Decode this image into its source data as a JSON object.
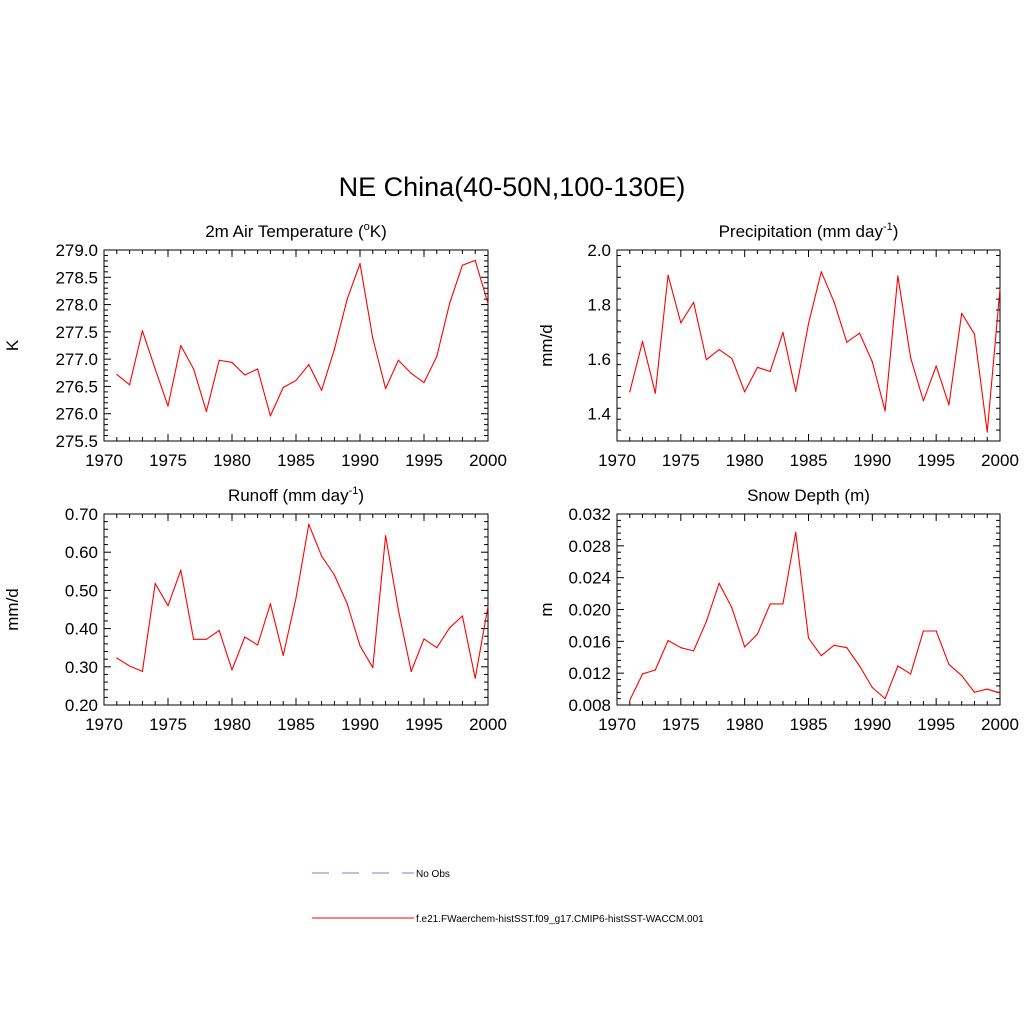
{
  "figure": {
    "title": "NE China(40-50N,100-130E)"
  },
  "legend": {
    "entries": [
      {
        "label": "No Obs",
        "color": "#9999dd",
        "style": "dashed"
      },
      {
        "label": "f.e21.FWaerchem-histSST.f09_g17.CMIP6-histSST-WACCM.001",
        "color": "#ff0000",
        "style": "solid"
      }
    ]
  },
  "chart_data": [
    {
      "type": "line",
      "title": "2m Air Temperature (°K)",
      "title_main": "2m Air Temperature (",
      "title_sup": "o",
      "title_after": "K)",
      "ylabel": "K",
      "xlim": [
        1970,
        2000
      ],
      "ylim": [
        275.5,
        279.0
      ],
      "x_ticks": [
        1970,
        1975,
        1980,
        1985,
        1990,
        1995,
        2000
      ],
      "y_ticks": [
        275.5,
        276.0,
        276.5,
        277.0,
        277.5,
        278.0,
        278.5,
        279.0
      ],
      "y_tick_labels": [
        "275.5",
        "276.0",
        "276.5",
        "277.0",
        "277.5",
        "278.0",
        "278.5",
        "279.0"
      ],
      "x": [
        1971,
        1972,
        1973,
        1974,
        1975,
        1976,
        1977,
        1978,
        1979,
        1980,
        1981,
        1982,
        1983,
        1984,
        1985,
        1986,
        1987,
        1988,
        1989,
        1990,
        1991,
        1992,
        1993,
        1994,
        1995,
        1996,
        1997,
        1998,
        1999,
        2000
      ],
      "series": [
        {
          "name": "f.e21.FWaerchem-histSST.f09_g17.CMIP6-histSST-WACCM.001",
          "color": "#ff0000",
          "values": [
            276.72,
            276.53,
            277.52,
            276.82,
            276.14,
            277.25,
            276.82,
            276.04,
            276.98,
            276.94,
            276.71,
            276.82,
            275.96,
            276.48,
            276.61,
            276.9,
            276.43,
            277.18,
            278.1,
            278.75,
            277.38,
            276.46,
            276.98,
            276.74,
            276.57,
            277.05,
            278.02,
            278.72,
            278.81,
            278.02
          ]
        }
      ]
    },
    {
      "type": "line",
      "title": "Precipitation (mm day-1)",
      "title_main": "Precipitation (mm day",
      "title_sup": "-1",
      "title_after": ")",
      "ylabel": "mm/d",
      "xlim": [
        1970,
        2000
      ],
      "ylim": [
        1.3,
        2.0
      ],
      "x_ticks": [
        1970,
        1975,
        1980,
        1985,
        1990,
        1995,
        2000
      ],
      "y_ticks": [
        1.4,
        1.6,
        1.8,
        2.0
      ],
      "y_tick_labels": [
        "1.4",
        "1.6",
        "1.8",
        "2.0"
      ],
      "x": [
        1971,
        1972,
        1973,
        1974,
        1975,
        1976,
        1977,
        1978,
        1979,
        1980,
        1981,
        1982,
        1983,
        1984,
        1985,
        1986,
        1987,
        1988,
        1989,
        1990,
        1991,
        1992,
        1993,
        1994,
        1995,
        1996,
        1997,
        1998,
        1999,
        2000
      ],
      "series": [
        {
          "name": "f.e21.FWaerchem-histSST.f09_g17.CMIP6-histSST-WACCM.001",
          "color": "#ff0000",
          "values": [
            1.48,
            1.665,
            1.475,
            1.908,
            1.733,
            1.808,
            1.598,
            1.635,
            1.602,
            1.48,
            1.57,
            1.555,
            1.698,
            1.482,
            1.73,
            1.92,
            1.81,
            1.662,
            1.695,
            1.59,
            1.41,
            1.905,
            1.605,
            1.447,
            1.575,
            1.432,
            1.768,
            1.692,
            1.333,
            1.858
          ]
        }
      ]
    },
    {
      "type": "line",
      "title": "Runoff (mm day-1)",
      "title_main": "Runoff (mm day",
      "title_sup": "-1",
      "title_after": ")",
      "ylabel": "mm/d",
      "xlim": [
        1970,
        2000
      ],
      "ylim": [
        0.2,
        0.7
      ],
      "x_ticks": [
        1970,
        1975,
        1980,
        1985,
        1990,
        1995,
        2000
      ],
      "y_ticks": [
        0.2,
        0.3,
        0.4,
        0.5,
        0.6,
        0.7
      ],
      "y_tick_labels": [
        "0.20",
        "0.30",
        "0.40",
        "0.50",
        "0.60",
        "0.70"
      ],
      "x": [
        1971,
        1972,
        1973,
        1974,
        1975,
        1976,
        1977,
        1978,
        1979,
        1980,
        1981,
        1982,
        1983,
        1984,
        1985,
        1986,
        1987,
        1988,
        1989,
        1990,
        1991,
        1992,
        1993,
        1994,
        1995,
        1996,
        1997,
        1998,
        1999,
        2000
      ],
      "series": [
        {
          "name": "f.e21.FWaerchem-histSST.f09_g17.CMIP6-histSST-WACCM.001",
          "color": "#ff0000",
          "values": [
            0.323,
            0.302,
            0.288,
            0.518,
            0.46,
            0.553,
            0.372,
            0.372,
            0.395,
            0.292,
            0.378,
            0.357,
            0.465,
            0.33,
            0.48,
            0.673,
            0.59,
            0.54,
            0.465,
            0.355,
            0.298,
            0.643,
            0.448,
            0.288,
            0.373,
            0.35,
            0.402,
            0.433,
            0.27,
            0.458
          ]
        }
      ]
    },
    {
      "type": "line",
      "title": "Snow Depth (m)",
      "title_main": "Snow Depth (m)",
      "title_sup": "",
      "title_after": "",
      "ylabel": "m",
      "xlim": [
        1970,
        2000
      ],
      "ylim": [
        0.008,
        0.032
      ],
      "x_ticks": [
        1970,
        1975,
        1980,
        1985,
        1990,
        1995,
        2000
      ],
      "y_ticks": [
        0.008,
        0.012,
        0.016,
        0.02,
        0.024,
        0.028,
        0.032
      ],
      "y_tick_labels": [
        "0.008",
        "0.012",
        "0.016",
        "0.020",
        "0.024",
        "0.028",
        "0.032"
      ],
      "x": [
        1971,
        1972,
        1973,
        1974,
        1975,
        1976,
        1977,
        1978,
        1979,
        1980,
        1981,
        1982,
        1983,
        1984,
        1985,
        1986,
        1987,
        1988,
        1989,
        1990,
        1991,
        1992,
        1993,
        1994,
        1995,
        1996,
        1997,
        1998,
        1999,
        2000
      ],
      "series": [
        {
          "name": "f.e21.FWaerchem-histSST.f09_g17.CMIP6-histSST-WACCM.001",
          "color": "#ff0000",
          "values": [
            0.0086,
            0.0119,
            0.0124,
            0.0161,
            0.0152,
            0.0148,
            0.0185,
            0.0233,
            0.0202,
            0.0153,
            0.0169,
            0.0207,
            0.0207,
            0.0297,
            0.0164,
            0.0142,
            0.0155,
            0.0152,
            0.0129,
            0.0102,
            0.0088,
            0.0129,
            0.0119,
            0.0173,
            0.0173,
            0.0131,
            0.0117,
            0.0096,
            0.01,
            0.0095
          ]
        }
      ]
    }
  ]
}
